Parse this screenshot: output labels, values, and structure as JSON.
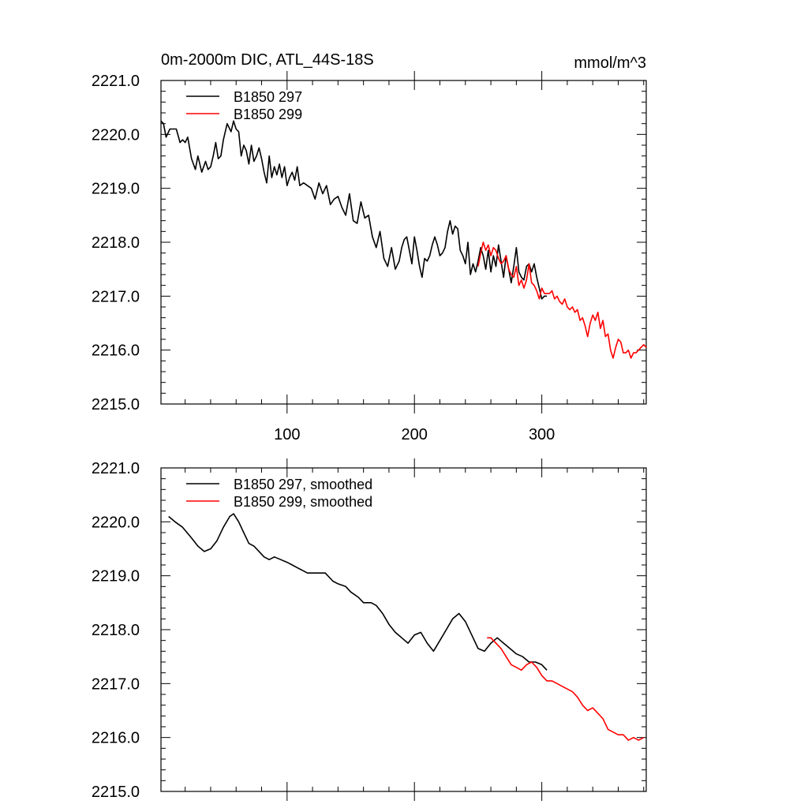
{
  "figure": {
    "title_left": "0m-2000m DIC, ATL_44S-18S",
    "title_right": "mmol/m^3"
  },
  "chart_data": [
    {
      "type": "line",
      "title": "0m-2000m DIC, ATL_44S-18S",
      "units": "mmol/m^3",
      "xlim": [
        1,
        382
      ],
      "ylim": [
        2215.0,
        2221.0
      ],
      "x_ticks": [
        100,
        200,
        300
      ],
      "x_tick_labels": [
        "100",
        "200",
        "300"
      ],
      "y_ticks": [
        2215.0,
        2216.0,
        2217.0,
        2218.0,
        2219.0,
        2220.0,
        2221.0
      ],
      "y_tick_labels": [
        "2215.0",
        "2216.0",
        "2217.0",
        "2218.0",
        "2219.0",
        "2220.0",
        "2221.0"
      ],
      "legend_position": "top-left",
      "series": [
        {
          "name": "B1850 297",
          "color": "#000000",
          "x": [
            1,
            3,
            5,
            8,
            10,
            13,
            16,
            18,
            20,
            22,
            25,
            28,
            30,
            33,
            36,
            38,
            40,
            42,
            44,
            46,
            48,
            50,
            53,
            56,
            58,
            60,
            62,
            64,
            66,
            68,
            70,
            72,
            74,
            76,
            78,
            80,
            82,
            84,
            86,
            88,
            90,
            92,
            94,
            96,
            98,
            100,
            102,
            104,
            106,
            108,
            110,
            113,
            116,
            119,
            122,
            125,
            128,
            131,
            134,
            137,
            140,
            143,
            146,
            149,
            152,
            155,
            158,
            161,
            164,
            167,
            170,
            173,
            176,
            179,
            182,
            185,
            188,
            190,
            192,
            194,
            196,
            198,
            200,
            202,
            204,
            206,
            208,
            210,
            212,
            214,
            216,
            218,
            220,
            222,
            224,
            226,
            228,
            230,
            232,
            234,
            236,
            238,
            240,
            242,
            244,
            246,
            248,
            250,
            252,
            254,
            256,
            258,
            260,
            262,
            264,
            266,
            268,
            270,
            272,
            274,
            276,
            278,
            280,
            282,
            284,
            286,
            288,
            290,
            292,
            294,
            296,
            298,
            300,
            302,
            304
          ],
          "values": [
            2220.25,
            2220.2,
            2219.95,
            2220.1,
            2220.1,
            2220.1,
            2219.85,
            2219.9,
            2219.85,
            2219.95,
            2219.55,
            2219.35,
            2219.6,
            2219.3,
            2219.5,
            2219.35,
            2219.4,
            2219.6,
            2219.85,
            2219.55,
            2219.6,
            2219.9,
            2220.2,
            2220.05,
            2220.25,
            2220.1,
            2220.05,
            2219.6,
            2219.8,
            2219.7,
            2219.45,
            2219.8,
            2219.5,
            2219.6,
            2219.75,
            2219.55,
            2219.3,
            2219.1,
            2219.6,
            2219.2,
            2219.4,
            2219.25,
            2219.45,
            2219.2,
            2219.4,
            2219.05,
            2219.2,
            2219.3,
            2219.15,
            2219.4,
            2219.05,
            2219.1,
            2219.05,
            2219.0,
            2218.8,
            2219.1,
            2218.9,
            2219.05,
            2218.7,
            2218.8,
            2218.85,
            2218.65,
            2218.5,
            2218.9,
            2218.4,
            2218.35,
            2218.75,
            2218.45,
            2218.5,
            2218.1,
            2217.9,
            2218.2,
            2217.7,
            2217.55,
            2217.9,
            2217.5,
            2217.65,
            2217.9,
            2218.05,
            2218.1,
            2217.85,
            2217.6,
            2218.1,
            2217.85,
            2217.55,
            2217.35,
            2217.7,
            2217.65,
            2217.75,
            2217.95,
            2218.1,
            2217.95,
            2217.75,
            2217.8,
            2217.9,
            2218.2,
            2218.4,
            2218.15,
            2218.3,
            2218.25,
            2217.85,
            2217.75,
            2217.6,
            2218.0,
            2217.4,
            2217.6,
            2217.45,
            2217.65,
            2217.9,
            2217.75,
            2217.5,
            2217.85,
            2217.45,
            2217.75,
            2217.55,
            2217.95,
            2217.65,
            2217.35,
            2217.75,
            2217.5,
            2217.25,
            2217.55,
            2217.9,
            2217.45,
            2217.35,
            2217.3,
            2217.55,
            2217.6,
            2217.45,
            2217.6,
            2217.35,
            2217.15,
            2216.95,
            2217.0,
            2217.0
          ]
        },
        {
          "name": "B1850 299",
          "color": "#ff0000",
          "x": [
            250,
            252,
            254,
            256,
            258,
            260,
            262,
            264,
            266,
            268,
            270,
            272,
            274,
            276,
            278,
            280,
            282,
            284,
            286,
            288,
            290,
            292,
            294,
            296,
            298,
            300,
            302,
            304,
            306,
            308,
            310,
            312,
            314,
            316,
            318,
            320,
            322,
            324,
            326,
            328,
            330,
            332,
            334,
            336,
            338,
            340,
            342,
            344,
            346,
            348,
            350,
            352,
            354,
            356,
            358,
            360,
            362,
            364,
            366,
            368,
            370,
            372,
            374,
            376,
            378,
            380,
            382
          ],
          "values": [
            2217.55,
            2217.8,
            2218.0,
            2217.85,
            2217.95,
            2217.75,
            2217.9,
            2217.85,
            2217.7,
            2217.6,
            2217.65,
            2217.75,
            2217.5,
            2217.4,
            2217.35,
            2217.55,
            2217.2,
            2217.3,
            2217.15,
            2217.3,
            2217.6,
            2217.25,
            2217.2,
            2217.1,
            2216.95,
            2217.15,
            2217.05,
            2217.05,
            2217.05,
            2217.1,
            2216.95,
            2217.0,
            2216.9,
            2216.85,
            2216.95,
            2216.8,
            2216.75,
            2216.8,
            2216.7,
            2216.75,
            2216.55,
            2216.6,
            2216.45,
            2216.25,
            2216.5,
            2216.65,
            2216.55,
            2216.7,
            2216.4,
            2216.55,
            2216.25,
            2216.3,
            2216.0,
            2215.85,
            2216.05,
            2216.2,
            2216.15,
            2215.95,
            2215.95,
            2216.0,
            2215.85,
            2215.95,
            2215.95,
            2216.0,
            2216.05,
            2216.1,
            2216.05
          ]
        }
      ]
    },
    {
      "type": "line",
      "title": "",
      "xlim": [
        1,
        382
      ],
      "ylim": [
        2215.0,
        2221.0
      ],
      "x_ticks": [
        100,
        200,
        300
      ],
      "x_tick_labels": [],
      "y_ticks": [
        2215.0,
        2216.0,
        2217.0,
        2218.0,
        2219.0,
        2220.0,
        2221.0
      ],
      "y_tick_labels": [
        "2215.0",
        "2216.0",
        "2217.0",
        "2218.0",
        "2219.0",
        "2220.0",
        "2221.0"
      ],
      "legend_position": "top-left",
      "series": [
        {
          "name": "B1850 297, smoothed",
          "color": "#000000",
          "x": [
            7,
            12,
            18,
            25,
            30,
            35,
            40,
            45,
            50,
            55,
            58,
            62,
            66,
            70,
            74,
            78,
            82,
            86,
            90,
            95,
            100,
            104,
            108,
            112,
            116,
            120,
            124,
            130,
            136,
            140,
            146,
            150,
            156,
            160,
            166,
            170,
            175,
            180,
            185,
            190,
            195,
            200,
            205,
            210,
            215,
            220,
            225,
            230,
            235,
            240,
            245,
            250,
            255,
            260,
            265,
            270,
            275,
            280,
            285,
            290,
            295,
            300,
            304
          ],
          "values": [
            2220.1,
            2220.0,
            2219.9,
            2219.7,
            2219.55,
            2219.45,
            2219.5,
            2219.65,
            2219.9,
            2220.1,
            2220.15,
            2220.0,
            2219.8,
            2219.6,
            2219.55,
            2219.45,
            2219.35,
            2219.3,
            2219.35,
            2219.3,
            2219.25,
            2219.2,
            2219.15,
            2219.1,
            2219.05,
            2219.05,
            2219.05,
            2219.05,
            2218.9,
            2218.85,
            2218.8,
            2218.7,
            2218.6,
            2218.5,
            2218.5,
            2218.45,
            2218.3,
            2218.1,
            2217.95,
            2217.85,
            2217.75,
            2217.9,
            2217.95,
            2217.75,
            2217.6,
            2217.8,
            2218.0,
            2218.2,
            2218.3,
            2218.15,
            2217.9,
            2217.65,
            2217.6,
            2217.75,
            2217.85,
            2217.75,
            2217.65,
            2217.55,
            2217.5,
            2217.4,
            2217.4,
            2217.35,
            2217.25
          ]
        },
        {
          "name": "B1850 299, smoothed",
          "color": "#ff0000",
          "x": [
            257,
            260,
            264,
            268,
            272,
            276,
            280,
            284,
            288,
            292,
            296,
            300,
            304,
            308,
            312,
            316,
            320,
            324,
            328,
            332,
            336,
            340,
            344,
            348,
            352,
            356,
            360,
            364,
            368,
            372,
            376,
            380
          ],
          "values": [
            2217.85,
            2217.85,
            2217.75,
            2217.65,
            2217.5,
            2217.35,
            2217.3,
            2217.25,
            2217.35,
            2217.4,
            2217.3,
            2217.15,
            2217.05,
            2217.05,
            2217.0,
            2216.95,
            2216.9,
            2216.85,
            2216.75,
            2216.6,
            2216.5,
            2216.55,
            2216.45,
            2216.35,
            2216.15,
            2216.1,
            2216.05,
            2216.05,
            2215.95,
            2216.0,
            2215.95,
            2216.0
          ]
        }
      ]
    }
  ]
}
